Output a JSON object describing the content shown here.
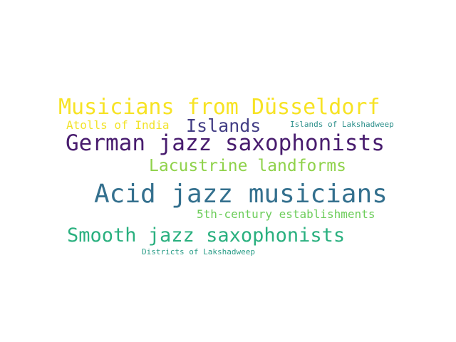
{
  "word_cloud": {
    "words": [
      {
        "text": "Musicians from Düsseldorf",
        "color": "#f7e324"
      },
      {
        "text": "Atolls of India",
        "color": "#f2e32a"
      },
      {
        "text": "Islands",
        "color": "#433e85"
      },
      {
        "text": "Islands of Lakshadweep",
        "color": "#2c8f8b"
      },
      {
        "text": "German jazz saxophonists",
        "color": "#481c6e"
      },
      {
        "text": "Lacustrine landforms",
        "color": "#8fd24a"
      },
      {
        "text": "Acid jazz musicians",
        "color": "#34708e"
      },
      {
        "text": "5th-century establishments",
        "color": "#6ccd5a"
      },
      {
        "text": "Smooth jazz saxophonists",
        "color": "#2ab07f"
      },
      {
        "text": "Districts of Lakshadweep",
        "color": "#2a9c87"
      }
    ]
  }
}
